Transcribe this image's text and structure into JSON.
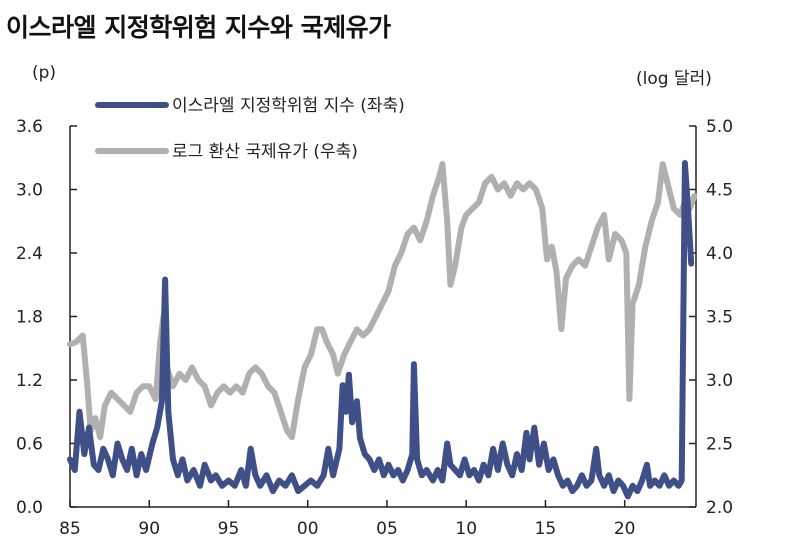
{
  "title": "이스라엘 지정학위험 지수와 국제유가",
  "chart_data": {
    "type": "line",
    "y_left_unit": "(p)",
    "y_right_unit": "(log 달러)",
    "x_ticks": [
      "85",
      "90",
      "95",
      "00",
      "05",
      "10",
      "15",
      "20"
    ],
    "y_left_ticks": [
      "0.0",
      "0.6",
      "1.2",
      "1.8",
      "2.4",
      "3.0",
      "3.6"
    ],
    "y_right_ticks": [
      "2.0",
      "2.5",
      "3.0",
      "3.5",
      "4.0",
      "4.5",
      "5.0"
    ],
    "x_range": [
      1985,
      2024.5
    ],
    "y_left_range": [
      0,
      3.6
    ],
    "y_right_range": [
      2.0,
      5.0
    ],
    "series": [
      {
        "name": "이스라엘 지정학위험 지수 (좌축)",
        "axis": "left",
        "color": "#3f4f88",
        "points": [
          [
            1985.0,
            0.45
          ],
          [
            1985.3,
            0.35
          ],
          [
            1985.6,
            0.9
          ],
          [
            1985.9,
            0.5
          ],
          [
            1986.2,
            0.75
          ],
          [
            1986.5,
            0.4
          ],
          [
            1986.8,
            0.35
          ],
          [
            1987.1,
            0.55
          ],
          [
            1987.4,
            0.45
          ],
          [
            1987.7,
            0.3
          ],
          [
            1988.0,
            0.6
          ],
          [
            1988.3,
            0.45
          ],
          [
            1988.6,
            0.35
          ],
          [
            1988.9,
            0.55
          ],
          [
            1989.2,
            0.3
          ],
          [
            1989.5,
            0.5
          ],
          [
            1989.8,
            0.35
          ],
          [
            1990.2,
            0.6
          ],
          [
            1990.5,
            0.75
          ],
          [
            1990.8,
            1.0
          ],
          [
            1991.0,
            2.15
          ],
          [
            1991.2,
            0.9
          ],
          [
            1991.5,
            0.45
          ],
          [
            1991.8,
            0.3
          ],
          [
            1992.1,
            0.45
          ],
          [
            1992.4,
            0.25
          ],
          [
            1992.8,
            0.35
          ],
          [
            1993.2,
            0.2
          ],
          [
            1993.5,
            0.4
          ],
          [
            1993.9,
            0.25
          ],
          [
            1994.2,
            0.3
          ],
          [
            1994.6,
            0.2
          ],
          [
            1995.0,
            0.25
          ],
          [
            1995.4,
            0.2
          ],
          [
            1995.8,
            0.35
          ],
          [
            1996.1,
            0.2
          ],
          [
            1996.4,
            0.55
          ],
          [
            1996.7,
            0.3
          ],
          [
            1997.0,
            0.2
          ],
          [
            1997.4,
            0.3
          ],
          [
            1997.8,
            0.15
          ],
          [
            1998.2,
            0.25
          ],
          [
            1998.6,
            0.2
          ],
          [
            1999.0,
            0.3
          ],
          [
            1999.4,
            0.15
          ],
          [
            1999.8,
            0.2
          ],
          [
            2000.2,
            0.25
          ],
          [
            2000.6,
            0.2
          ],
          [
            2001.0,
            0.3
          ],
          [
            2001.3,
            0.55
          ],
          [
            2001.6,
            0.3
          ],
          [
            2002.0,
            0.55
          ],
          [
            2002.2,
            1.15
          ],
          [
            2002.4,
            0.9
          ],
          [
            2002.6,
            1.25
          ],
          [
            2002.8,
            0.8
          ],
          [
            2003.1,
            1.0
          ],
          [
            2003.3,
            0.65
          ],
          [
            2003.6,
            0.5
          ],
          [
            2003.9,
            0.45
          ],
          [
            2004.2,
            0.35
          ],
          [
            2004.5,
            0.45
          ],
          [
            2004.8,
            0.3
          ],
          [
            2005.1,
            0.4
          ],
          [
            2005.4,
            0.3
          ],
          [
            2005.7,
            0.35
          ],
          [
            2006.0,
            0.25
          ],
          [
            2006.3,
            0.35
          ],
          [
            2006.6,
            0.5
          ],
          [
            2006.7,
            1.35
          ],
          [
            2006.9,
            0.45
          ],
          [
            2007.2,
            0.3
          ],
          [
            2007.5,
            0.35
          ],
          [
            2007.9,
            0.25
          ],
          [
            2008.2,
            0.35
          ],
          [
            2008.5,
            0.25
          ],
          [
            2008.8,
            0.6
          ],
          [
            2009.0,
            0.4
          ],
          [
            2009.3,
            0.35
          ],
          [
            2009.6,
            0.3
          ],
          [
            2009.9,
            0.45
          ],
          [
            2010.2,
            0.3
          ],
          [
            2010.5,
            0.35
          ],
          [
            2010.8,
            0.25
          ],
          [
            2011.1,
            0.4
          ],
          [
            2011.4,
            0.3
          ],
          [
            2011.7,
            0.55
          ],
          [
            2012.0,
            0.35
          ],
          [
            2012.3,
            0.6
          ],
          [
            2012.6,
            0.4
          ],
          [
            2012.9,
            0.3
          ],
          [
            2013.2,
            0.5
          ],
          [
            2013.5,
            0.35
          ],
          [
            2013.8,
            0.7
          ],
          [
            2014.0,
            0.45
          ],
          [
            2014.3,
            0.75
          ],
          [
            2014.6,
            0.4
          ],
          [
            2014.9,
            0.6
          ],
          [
            2015.2,
            0.35
          ],
          [
            2015.5,
            0.45
          ],
          [
            2015.8,
            0.3
          ],
          [
            2016.1,
            0.2
          ],
          [
            2016.4,
            0.25
          ],
          [
            2016.7,
            0.15
          ],
          [
            2017.0,
            0.2
          ],
          [
            2017.3,
            0.3
          ],
          [
            2017.6,
            0.2
          ],
          [
            2017.9,
            0.25
          ],
          [
            2018.2,
            0.55
          ],
          [
            2018.4,
            0.3
          ],
          [
            2018.7,
            0.2
          ],
          [
            2019.0,
            0.3
          ],
          [
            2019.3,
            0.15
          ],
          [
            2019.6,
            0.25
          ],
          [
            2019.9,
            0.2
          ],
          [
            2020.2,
            0.1
          ],
          [
            2020.5,
            0.2
          ],
          [
            2020.8,
            0.15
          ],
          [
            2021.1,
            0.25
          ],
          [
            2021.4,
            0.4
          ],
          [
            2021.6,
            0.2
          ],
          [
            2021.9,
            0.25
          ],
          [
            2022.2,
            0.2
          ],
          [
            2022.5,
            0.3
          ],
          [
            2022.8,
            0.2
          ],
          [
            2023.1,
            0.25
          ],
          [
            2023.4,
            0.2
          ],
          [
            2023.6,
            0.25
          ],
          [
            2023.8,
            3.25
          ],
          [
            2024.0,
            2.8
          ],
          [
            2024.2,
            2.3
          ]
        ]
      },
      {
        "name": "로그 환산 국제유가 (우축)",
        "axis": "right",
        "color": "#b0b0b0",
        "points": [
          [
            1985.0,
            3.28
          ],
          [
            1985.4,
            3.3
          ],
          [
            1985.8,
            3.35
          ],
          [
            1986.1,
            2.95
          ],
          [
            1986.3,
            2.6
          ],
          [
            1986.6,
            2.7
          ],
          [
            1986.9,
            2.55
          ],
          [
            1987.2,
            2.8
          ],
          [
            1987.6,
            2.9
          ],
          [
            1988.0,
            2.85
          ],
          [
            1988.4,
            2.8
          ],
          [
            1988.8,
            2.75
          ],
          [
            1989.2,
            2.9
          ],
          [
            1989.6,
            2.95
          ],
          [
            1990.0,
            2.95
          ],
          [
            1990.4,
            2.85
          ],
          [
            1990.7,
            3.3
          ],
          [
            1990.9,
            3.5
          ],
          [
            1991.1,
            3.1
          ],
          [
            1991.5,
            2.95
          ],
          [
            1991.9,
            3.05
          ],
          [
            1992.3,
            3.0
          ],
          [
            1992.7,
            3.1
          ],
          [
            1993.1,
            3.0
          ],
          [
            1993.5,
            2.95
          ],
          [
            1993.9,
            2.8
          ],
          [
            1994.3,
            2.9
          ],
          [
            1994.7,
            2.95
          ],
          [
            1995.1,
            2.9
          ],
          [
            1995.5,
            2.95
          ],
          [
            1995.9,
            2.9
          ],
          [
            1996.3,
            3.05
          ],
          [
            1996.7,
            3.1
          ],
          [
            1997.1,
            3.05
          ],
          [
            1997.5,
            2.95
          ],
          [
            1997.9,
            2.9
          ],
          [
            1998.3,
            2.75
          ],
          [
            1998.7,
            2.6
          ],
          [
            1999.0,
            2.55
          ],
          [
            1999.4,
            2.85
          ],
          [
            1999.8,
            3.1
          ],
          [
            2000.2,
            3.2
          ],
          [
            2000.6,
            3.4
          ],
          [
            2000.9,
            3.4
          ],
          [
            2001.2,
            3.3
          ],
          [
            2001.6,
            3.2
          ],
          [
            2001.9,
            3.05
          ],
          [
            2002.3,
            3.2
          ],
          [
            2002.7,
            3.3
          ],
          [
            2003.1,
            3.4
          ],
          [
            2003.5,
            3.35
          ],
          [
            2003.9,
            3.4
          ],
          [
            2004.3,
            3.5
          ],
          [
            2004.7,
            3.6
          ],
          [
            2005.1,
            3.7
          ],
          [
            2005.5,
            3.9
          ],
          [
            2005.9,
            4.0
          ],
          [
            2006.3,
            4.15
          ],
          [
            2006.7,
            4.2
          ],
          [
            2007.1,
            4.1
          ],
          [
            2007.5,
            4.25
          ],
          [
            2007.9,
            4.45
          ],
          [
            2008.3,
            4.6
          ],
          [
            2008.5,
            4.7
          ],
          [
            2008.8,
            4.25
          ],
          [
            2009.0,
            3.75
          ],
          [
            2009.3,
            3.9
          ],
          [
            2009.7,
            4.2
          ],
          [
            2010.0,
            4.3
          ],
          [
            2010.4,
            4.35
          ],
          [
            2010.8,
            4.4
          ],
          [
            2011.2,
            4.55
          ],
          [
            2011.6,
            4.6
          ],
          [
            2012.0,
            4.5
          ],
          [
            2012.4,
            4.55
          ],
          [
            2012.8,
            4.45
          ],
          [
            2013.2,
            4.55
          ],
          [
            2013.6,
            4.5
          ],
          [
            2014.0,
            4.55
          ],
          [
            2014.4,
            4.5
          ],
          [
            2014.8,
            4.35
          ],
          [
            2015.1,
            3.95
          ],
          [
            2015.4,
            4.05
          ],
          [
            2015.7,
            3.85
          ],
          [
            2016.0,
            3.4
          ],
          [
            2016.3,
            3.8
          ],
          [
            2016.7,
            3.9
          ],
          [
            2017.1,
            3.95
          ],
          [
            2017.5,
            3.9
          ],
          [
            2017.9,
            4.05
          ],
          [
            2018.3,
            4.2
          ],
          [
            2018.7,
            4.3
          ],
          [
            2019.0,
            3.95
          ],
          [
            2019.4,
            4.15
          ],
          [
            2019.8,
            4.1
          ],
          [
            2020.1,
            4.0
          ],
          [
            2020.3,
            2.85
          ],
          [
            2020.5,
            3.6
          ],
          [
            2020.9,
            3.75
          ],
          [
            2021.3,
            4.05
          ],
          [
            2021.7,
            4.25
          ],
          [
            2022.1,
            4.4
          ],
          [
            2022.4,
            4.7
          ],
          [
            2022.8,
            4.5
          ],
          [
            2023.1,
            4.35
          ],
          [
            2023.5,
            4.3
          ],
          [
            2023.8,
            4.4
          ],
          [
            2024.1,
            4.35
          ],
          [
            2024.4,
            4.45
          ]
        ]
      }
    ]
  }
}
